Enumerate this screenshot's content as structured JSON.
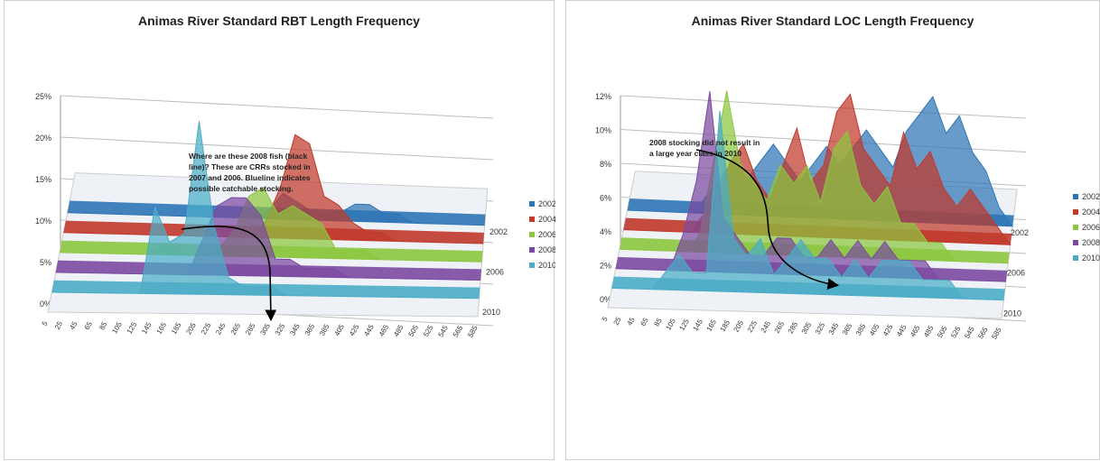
{
  "colors": {
    "2002": "#2e75b6",
    "2004": "#c0392b",
    "2006": "#8cc63f",
    "2008": "#7b4aa0",
    "2010": "#4bacc6"
  },
  "chart_data": [
    {
      "type": "area",
      "title": "Animas River Standard RBT Length Frequency",
      "x": [
        "5",
        "25",
        "45",
        "65",
        "85",
        "105",
        "125",
        "145",
        "165",
        "185",
        "205",
        "225",
        "245",
        "265",
        "285",
        "305",
        "325",
        "345",
        "365",
        "385",
        "405",
        "425",
        "445",
        "465",
        "485",
        "505",
        "525",
        "545",
        "565",
        "585"
      ],
      "yticks": [
        "0%",
        "5%",
        "10%",
        "15%",
        "20%",
        "25%"
      ],
      "ylim": [
        0,
        0.25
      ],
      "depth_labels": [
        "2002",
        "2006",
        "2010"
      ],
      "legend_placement": "right",
      "annotation": "Where are these 2008 fish (black line)? These are CRRs stocked in 2007 and 2006. Blueline indicates possible catchable stocking.",
      "series": [
        {
          "name": "2002",
          "values": [
            0,
            0,
            0,
            0,
            0,
            0,
            0,
            0,
            0,
            0,
            0,
            0,
            0,
            0,
            0.01,
            0.03,
            0.02,
            0.01,
            0.01,
            0.01,
            0.02,
            0.02,
            0.01,
            0.01,
            0,
            0,
            0,
            0,
            0,
            0
          ]
        },
        {
          "name": "2004",
          "values": [
            0,
            0,
            0,
            0,
            0,
            0,
            0,
            0,
            0,
            0,
            0,
            0,
            0,
            0,
            0.02,
            0.06,
            0.12,
            0.11,
            0.05,
            0.04,
            0.02,
            0.01,
            0.01,
            0,
            0,
            0,
            0,
            0,
            0,
            0
          ]
        },
        {
          "name": "2006",
          "values": [
            0,
            0,
            0,
            0,
            0,
            0,
            0,
            0.01,
            0.01,
            0,
            0,
            0.01,
            0.03,
            0.07,
            0.08,
            0.05,
            0.06,
            0.05,
            0.04,
            0.01,
            0.01,
            0.01,
            0,
            0,
            0,
            0,
            0,
            0,
            0,
            0
          ]
        },
        {
          "name": "2008",
          "values": [
            0,
            0,
            0,
            0,
            0,
            0,
            0,
            0,
            0,
            0,
            0.04,
            0.08,
            0.09,
            0.09,
            0.07,
            0.02,
            0.02,
            0.01,
            0.01,
            0.01,
            0,
            0,
            0,
            0,
            0,
            0,
            0,
            0,
            0,
            0
          ]
        },
        {
          "name": "2010",
          "values": [
            0,
            0,
            0,
            0,
            0,
            0,
            0,
            0.1,
            0.06,
            0.07,
            0.2,
            0.08,
            0.02,
            0.01,
            0.01,
            0.01,
            0,
            0,
            0,
            0,
            0,
            0,
            0,
            0,
            0,
            0,
            0,
            0,
            0,
            0
          ]
        }
      ]
    },
    {
      "type": "area",
      "title": "Animas River Standard LOC Length Frequency",
      "x": [
        "5",
        "25",
        "45",
        "65",
        "85",
        "105",
        "125",
        "145",
        "165",
        "185",
        "205",
        "225",
        "245",
        "265",
        "285",
        "305",
        "325",
        "345",
        "365",
        "385",
        "405",
        "425",
        "445",
        "465",
        "485",
        "505",
        "525",
        "545",
        "565",
        "585"
      ],
      "yticks": [
        "0%",
        "2%",
        "4%",
        "6%",
        "8%",
        "10%",
        "12%"
      ],
      "ylim": [
        0,
        0.12
      ],
      "depth_labels": [
        "2002",
        "2006",
        "2010"
      ],
      "legend_placement": "right",
      "annotation": "2008 stocking did not result in a large year class in 2010",
      "series": [
        {
          "name": "2002",
          "values": [
            0,
            0,
            0,
            0,
            0,
            0,
            0.01,
            0.02,
            0.03,
            0.02,
            0.03,
            0.04,
            0.03,
            0.02,
            0.03,
            0.04,
            0.03,
            0.04,
            0.05,
            0.04,
            0.03,
            0.05,
            0.06,
            0.07,
            0.05,
            0.06,
            0.04,
            0.03,
            0.01,
            0
          ]
        },
        {
          "name": "2004",
          "values": [
            0,
            0,
            0,
            0,
            0,
            0,
            0.01,
            0.02,
            0.04,
            0.05,
            0.03,
            0.02,
            0.04,
            0.06,
            0.03,
            0.04,
            0.07,
            0.08,
            0.05,
            0.04,
            0.03,
            0.06,
            0.04,
            0.05,
            0.03,
            0.02,
            0.03,
            0.02,
            0.01,
            0
          ]
        },
        {
          "name": "2006",
          "values": [
            0,
            0,
            0,
            0,
            0,
            0,
            0.01,
            0.05,
            0.09,
            0.05,
            0.04,
            0.03,
            0.05,
            0.04,
            0.05,
            0.03,
            0.06,
            0.07,
            0.04,
            0.03,
            0.04,
            0.02,
            0.02,
            0.01,
            0.01,
            0,
            0,
            0,
            0,
            0
          ]
        },
        {
          "name": "2008",
          "values": [
            0,
            0,
            0,
            0,
            0,
            0.02,
            0.05,
            0.1,
            0.03,
            0.02,
            0.01,
            0.01,
            0.02,
            0.02,
            0.01,
            0.01,
            0.02,
            0.01,
            0.02,
            0.01,
            0.02,
            0.01,
            0.01,
            0.01,
            0,
            0,
            0,
            0,
            0,
            0
          ]
        },
        {
          "name": "2010",
          "values": [
            0,
            0,
            0,
            0,
            0.01,
            0.02,
            0.01,
            0.01,
            0.1,
            0.03,
            0.02,
            0.03,
            0.01,
            0.02,
            0.03,
            0.02,
            0.02,
            0.01,
            0.02,
            0.01,
            0.02,
            0.02,
            0.02,
            0.01,
            0.01,
            0.01,
            0,
            0,
            0,
            0
          ]
        }
      ]
    }
  ]
}
